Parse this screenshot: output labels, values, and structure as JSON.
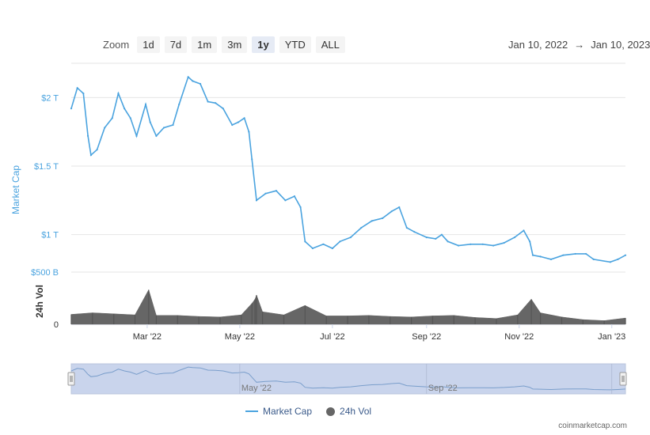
{
  "toolbar": {
    "zoom_label": "Zoom",
    "buttons": [
      "1d",
      "7d",
      "1m",
      "3m",
      "1y",
      "YTD",
      "ALL"
    ],
    "active": "1y"
  },
  "range": {
    "from": "Jan 10, 2022",
    "arrow": "→",
    "to": "Jan 10, 2023"
  },
  "legend": {
    "market_cap": "Market Cap",
    "volume": "24h Vol"
  },
  "credit": "coinmarketcap.com",
  "colors": {
    "market_cap": "#4aa3df",
    "volume": "#666666",
    "navigator_fill": "#c9d4ec"
  },
  "chart_data": {
    "type": "line",
    "x_unit": "date",
    "x_range": [
      "2022-01-10",
      "2023-01-10"
    ],
    "x_tick_labels": [
      "Mar '22",
      "May '22",
      "Jul '22",
      "Sep '22",
      "Nov '22",
      "Jan '23"
    ],
    "x_tick_dates": [
      "2022-03-01",
      "2022-05-01",
      "2022-07-01",
      "2022-09-01",
      "2022-11-01",
      "2023-01-01"
    ],
    "y_axis": {
      "label": "Market Cap",
      "ticks": [
        1,
        1.5,
        2
      ],
      "tick_labels": [
        "$1 T",
        "$1.5 T",
        "$2 T"
      ],
      "unit": "trillion USD",
      "range": [
        0.75,
        2.25
      ]
    },
    "volume_axis": {
      "label": "24h Vol",
      "ticks": [
        0,
        500
      ],
      "tick_labels": [
        "0",
        "$500 B"
      ],
      "unit": "billion USD",
      "range": [
        0,
        500
      ]
    },
    "series": [
      {
        "name": "Market Cap",
        "x": [
          "2022-01-10",
          "2022-01-14",
          "2022-01-18",
          "2022-01-21",
          "2022-01-23",
          "2022-01-27",
          "2022-02-01",
          "2022-02-06",
          "2022-02-10",
          "2022-02-14",
          "2022-02-18",
          "2022-02-22",
          "2022-02-28",
          "2022-03-03",
          "2022-03-07",
          "2022-03-12",
          "2022-03-18",
          "2022-03-22",
          "2022-03-28",
          "2022-03-31",
          "2022-04-05",
          "2022-04-10",
          "2022-04-15",
          "2022-04-20",
          "2022-04-26",
          "2022-04-30",
          "2022-05-04",
          "2022-05-07",
          "2022-05-09",
          "2022-05-12",
          "2022-05-18",
          "2022-05-25",
          "2022-05-31",
          "2022-06-06",
          "2022-06-10",
          "2022-06-13",
          "2022-06-18",
          "2022-06-25",
          "2022-07-01",
          "2022-07-06",
          "2022-07-13",
          "2022-07-20",
          "2022-07-27",
          "2022-08-03",
          "2022-08-09",
          "2022-08-14",
          "2022-08-19",
          "2022-08-24",
          "2022-09-01",
          "2022-09-07",
          "2022-09-11",
          "2022-09-15",
          "2022-09-22",
          "2022-09-30",
          "2022-10-08",
          "2022-10-15",
          "2022-10-22",
          "2022-10-29",
          "2022-11-04",
          "2022-11-08",
          "2022-11-10",
          "2022-11-15",
          "2022-11-22",
          "2022-11-30",
          "2022-12-08",
          "2022-12-15",
          "2022-12-20",
          "2022-12-31",
          "2023-01-05",
          "2023-01-10"
        ],
        "values": [
          1.92,
          2.07,
          2.03,
          1.72,
          1.58,
          1.62,
          1.78,
          1.85,
          2.03,
          1.92,
          1.85,
          1.72,
          1.95,
          1.82,
          1.72,
          1.78,
          1.8,
          1.95,
          2.15,
          2.12,
          2.1,
          1.97,
          1.96,
          1.92,
          1.8,
          1.82,
          1.85,
          1.75,
          1.55,
          1.25,
          1.3,
          1.32,
          1.25,
          1.28,
          1.2,
          0.95,
          0.9,
          0.93,
          0.9,
          0.95,
          0.98,
          1.05,
          1.1,
          1.12,
          1.17,
          1.2,
          1.05,
          1.02,
          0.98,
          0.97,
          1.0,
          0.95,
          0.92,
          0.93,
          0.93,
          0.92,
          0.94,
          0.98,
          1.03,
          0.95,
          0.85,
          0.84,
          0.82,
          0.85,
          0.86,
          0.86,
          0.82,
          0.8,
          0.82,
          0.85
        ]
      },
      {
        "name": "24h Vol",
        "x": [
          "2022-01-10",
          "2022-01-24",
          "2022-02-07",
          "2022-02-21",
          "2022-03-02",
          "2022-03-07",
          "2022-03-21",
          "2022-04-04",
          "2022-04-18",
          "2022-05-02",
          "2022-05-09",
          "2022-05-11",
          "2022-05-12",
          "2022-05-16",
          "2022-05-30",
          "2022-06-13",
          "2022-06-27",
          "2022-07-11",
          "2022-07-25",
          "2022-08-08",
          "2022-08-22",
          "2022-09-05",
          "2022-09-19",
          "2022-10-03",
          "2022-10-17",
          "2022-10-31",
          "2022-11-09",
          "2022-11-15",
          "2022-11-29",
          "2022-12-13",
          "2022-12-27",
          "2023-01-10"
        ],
        "values": [
          95,
          110,
          100,
          90,
          330,
          85,
          85,
          75,
          70,
          90,
          200,
          240,
          280,
          120,
          90,
          180,
          80,
          80,
          85,
          75,
          70,
          80,
          85,
          65,
          55,
          90,
          240,
          110,
          70,
          45,
          35,
          60
        ]
      }
    ],
    "legend_position": "bottom-center",
    "grid": "horizontal"
  }
}
